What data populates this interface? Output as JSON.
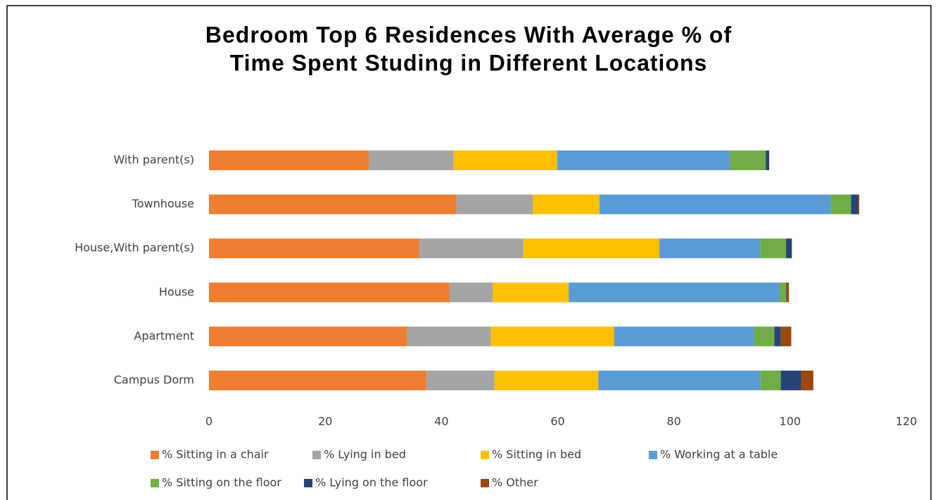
{
  "chart_data": {
    "type": "stacked-barh",
    "title": [
      "Bedroom Top 6 Residences With Average % of",
      "Time Spent Studing in Different Locations"
    ],
    "categories": [
      "Campus Dorm",
      "Apartment",
      "House",
      "House,With parent(s)",
      "Townhouse",
      "With parent(s)"
    ],
    "series": [
      {
        "name": "% Sitting in a chair",
        "color": "#ED7D31",
        "values": [
          37.4,
          34.1,
          41.4,
          36.2,
          42.6,
          27.5
        ]
      },
      {
        "name": "% Lying in bed",
        "color": "#A5A5A5",
        "values": [
          11.7,
          14.4,
          7.4,
          17.9,
          13.1,
          14.6
        ]
      },
      {
        "name": "% Sitting in bed",
        "color": "#FFC000",
        "values": [
          17.9,
          21.2,
          13.1,
          23.4,
          11.5,
          17.8
        ]
      },
      {
        "name": "% Working at a table",
        "color": "#5B9BD5",
        "values": [
          27.9,
          24.1,
          36.3,
          17.4,
          39.8,
          29.7
        ]
      },
      {
        "name": "% Sitting on the floor",
        "color": "#70AD47",
        "values": [
          3.5,
          3.5,
          1.1,
          4.4,
          3.5,
          6.2
        ]
      },
      {
        "name": "% Lying on the floor",
        "color": "#264478",
        "values": [
          3.5,
          1.1,
          0.1,
          1.0,
          1.2,
          0.6
        ]
      },
      {
        "name": "% Other",
        "color": "#9E480E",
        "values": [
          2.1,
          1.8,
          0.4,
          0,
          0.2,
          0
        ]
      }
    ],
    "xlim": [
      0,
      120
    ],
    "xticks": [
      0,
      20,
      40,
      60,
      80,
      100,
      120
    ],
    "grid": false,
    "legend": "bottom"
  }
}
